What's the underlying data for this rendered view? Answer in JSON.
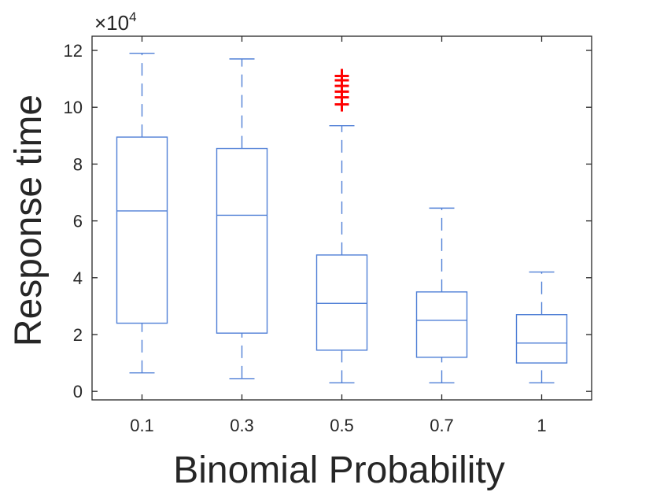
{
  "chart_data": {
    "type": "boxplot",
    "title": "",
    "xlabel": "Binomial Probability",
    "ylabel": "Response time",
    "y_exponent_label": "×10",
    "y_exponent_power": "4",
    "categories": [
      "0.1",
      "0.3",
      "0.5",
      "0.7",
      "1"
    ],
    "ylim": [
      -0.3,
      12.5
    ],
    "yticks": [
      0,
      2,
      4,
      6,
      8,
      10,
      12
    ],
    "ytick_labels": [
      "0",
      "2",
      "4",
      "6",
      "8",
      "10",
      "12"
    ],
    "unit_multiplier": 10000,
    "boxes": [
      {
        "category": "0.1",
        "whisker_low": 0.65,
        "q1": 2.4,
        "median": 6.35,
        "q3": 8.95,
        "whisker_high": 11.9,
        "outliers": []
      },
      {
        "category": "0.3",
        "whisker_low": 0.45,
        "q1": 2.05,
        "median": 6.2,
        "q3": 8.55,
        "whisker_high": 11.7,
        "outliers": []
      },
      {
        "category": "0.5",
        "whisker_low": 0.3,
        "q1": 1.45,
        "median": 3.1,
        "q3": 4.8,
        "whisker_high": 9.35,
        "outliers": [
          10.1,
          10.35,
          10.55,
          10.75,
          10.95,
          11.1
        ]
      },
      {
        "category": "0.7",
        "whisker_low": 0.3,
        "q1": 1.2,
        "median": 2.5,
        "q3": 3.5,
        "whisker_high": 6.45,
        "outliers": []
      },
      {
        "category": "1",
        "whisker_low": 0.3,
        "q1": 1.0,
        "median": 1.7,
        "q3": 2.7,
        "whisker_high": 4.2,
        "outliers": []
      }
    ],
    "colors": {
      "box": "#4f7fd6",
      "outlier": "#ff0000",
      "axis": "#262626"
    },
    "grid": false,
    "legend": "none"
  }
}
